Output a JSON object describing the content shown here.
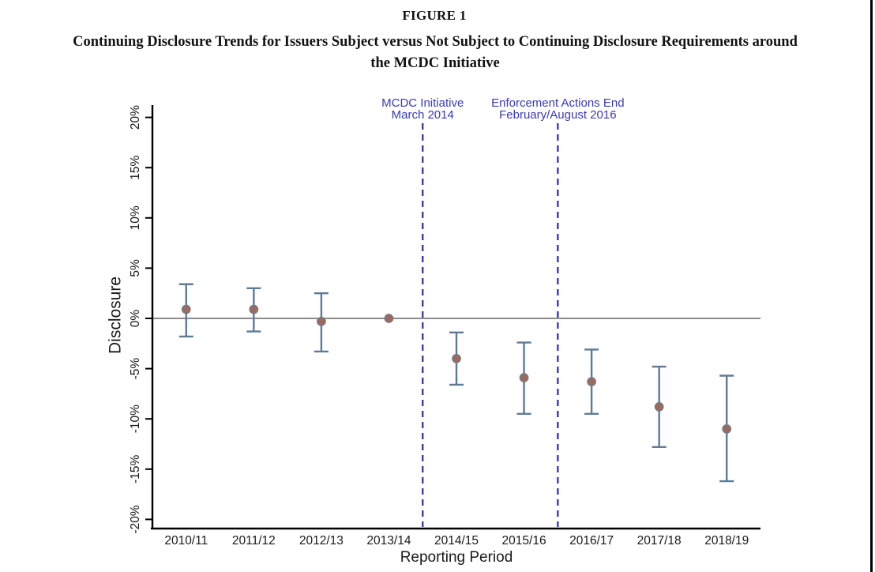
{
  "page": {
    "figure_label": "FIGURE 1",
    "title_line1": "Continuing Disclosure Trends for Issuers Subject versus Not Subject to Continuing Disclosure Requirements around",
    "title_line2": "the MCDC Initiative"
  },
  "chart_data": {
    "type": "scatter",
    "subtype": "coefficient-plot-with-error-bars",
    "title": "",
    "xlabel": "Reporting Period",
    "ylabel": "Disclosure",
    "categories": [
      "2010/11",
      "2011/12",
      "2012/13",
      "2013/14",
      "2014/15",
      "2015/16",
      "2016/17",
      "2017/18",
      "2018/19"
    ],
    "series": [
      {
        "name": "Estimate",
        "values": [
          0.9,
          0.9,
          -0.3,
          0.0,
          -4.0,
          -5.9,
          -6.3,
          -8.8,
          -11.0
        ],
        "ci_high": [
          3.4,
          3.0,
          2.5,
          0.0,
          -1.4,
          -2.4,
          -3.1,
          -4.8,
          -5.7
        ],
        "ci_low": [
          -1.8,
          -1.3,
          -3.3,
          0.0,
          -6.6,
          -9.5,
          -9.5,
          -12.8,
          -16.2
        ]
      }
    ],
    "baseline_category": "2013/14",
    "reference_line_y": 0,
    "ylim": [
      -20,
      20
    ],
    "ytick_step": 5,
    "ytick_labels": [
      "20%",
      "15%",
      "10%",
      "5%",
      "0%",
      "-5%",
      "-10%",
      "-15%",
      "-20%"
    ],
    "grid": false,
    "legend": "none",
    "annotations": [
      {
        "line1": "MCDC Initiative",
        "line2": "March 2014",
        "between": [
          "2013/14",
          "2014/15"
        ]
      },
      {
        "line1": "Enforcement Actions End",
        "line2": "February/August 2016",
        "between": [
          "2015/16",
          "2016/17"
        ]
      }
    ],
    "colors": {
      "marker": "#9c6a5d",
      "marker_edge": "#6e7d90",
      "error_bar": "#5d7b97",
      "reference_line": "#8c8c8c",
      "annotation": "#3a3ab2",
      "axis": "#000000",
      "tick_text": "#1a1a1a"
    }
  }
}
